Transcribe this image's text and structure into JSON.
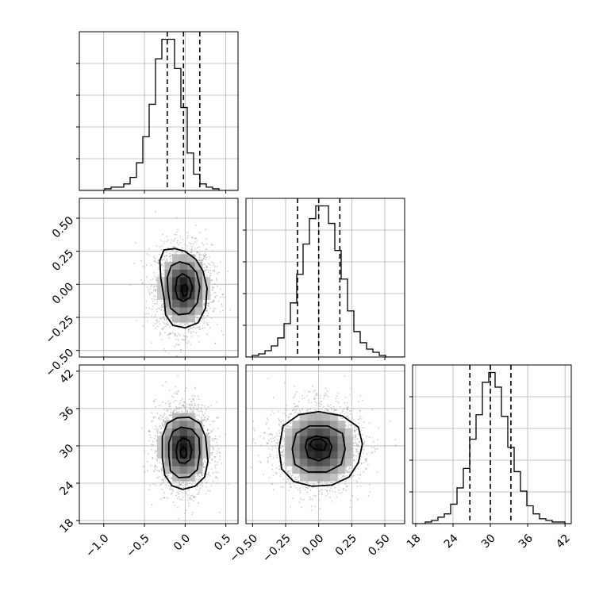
{
  "chart_data": {
    "type": "corner",
    "parameters": [
      "",
      "",
      ""
    ],
    "grid": true,
    "colors": {
      "line": "#000000",
      "grid": "#b0b0b0",
      "points": "#9a9a9a"
    },
    "ranges": [
      [
        -1.3,
        0.65
      ],
      [
        -0.55,
        0.65
      ],
      [
        17.5,
        43.0
      ]
    ],
    "ticks": [
      [
        -1.0,
        -0.5,
        0.0,
        0.5
      ],
      [
        -0.5,
        -0.25,
        0.0,
        0.25,
        0.5
      ],
      [
        18,
        24,
        30,
        36,
        42
      ]
    ],
    "tick_labels": [
      [
        "−1.0",
        "−0.5",
        "0.0",
        "0.5"
      ],
      [
        "−0.50",
        "−0.25",
        "0.00",
        "0.25",
        "0.50"
      ],
      [
        "18",
        "24",
        "30",
        "36",
        "42"
      ]
    ],
    "quantiles": [
      [
        -0.22,
        -0.02,
        0.18
      ],
      [
        -0.16,
        0.0,
        0.16
      ],
      [
        26.7,
        30.0,
        33.3
      ]
    ],
    "histograms": [
      {
        "param": 0,
        "edges_range": [
          -1.3,
          0.65
        ],
        "counts": [
          0,
          0,
          0,
          0,
          1,
          2,
          2,
          4,
          8,
          17,
          33,
          53,
          81,
          93,
          93,
          75,
          51,
          23,
          10,
          4,
          2,
          1,
          0,
          0,
          0
        ]
      },
      {
        "param": 1,
        "edges_range": [
          -0.55,
          0.65
        ],
        "counts": [
          0,
          1,
          2,
          4,
          7,
          12,
          21,
          34,
          52,
          71,
          87,
          95,
          95,
          84,
          67,
          49,
          29,
          16,
          9,
          5,
          3,
          1,
          0,
          0,
          0
        ]
      },
      {
        "param": 2,
        "edges_range": [
          17.5,
          43.0
        ],
        "counts": [
          0,
          0,
          1,
          2,
          4,
          6,
          12,
          22,
          34,
          52,
          67,
          87,
          93,
          84,
          66,
          47,
          32,
          20,
          11,
          6,
          3,
          2,
          1,
          1,
          0
        ]
      }
    ],
    "pairs": [
      {
        "x_param": 0,
        "y_param": 1,
        "center": [
          -0.02,
          -0.03
        ],
        "sigma": [
          0.165,
          0.155
        ],
        "contours": [
          [
            [
              -0.26,
              -0.1
            ],
            [
              -0.24,
              -0.23
            ],
            [
              -0.15,
              -0.31
            ],
            [
              0.0,
              -0.33
            ],
            [
              0.16,
              -0.29
            ],
            [
              0.25,
              -0.18
            ],
            [
              0.27,
              -0.03
            ],
            [
              0.22,
              0.1
            ],
            [
              0.13,
              0.19
            ],
            [
              0.0,
              0.25
            ],
            [
              -0.13,
              0.27
            ],
            [
              -0.26,
              0.26
            ],
            [
              -0.31,
              0.18
            ],
            [
              -0.3,
              0.05
            ]
          ],
          [
            [
              -0.21,
              -0.05
            ],
            [
              -0.18,
              -0.18
            ],
            [
              -0.08,
              -0.23
            ],
            [
              0.05,
              -0.22
            ],
            [
              0.15,
              -0.14
            ],
            [
              0.18,
              -0.02
            ],
            [
              0.14,
              0.09
            ],
            [
              0.05,
              0.15
            ],
            [
              -0.07,
              0.17
            ],
            [
              -0.17,
              0.14
            ],
            [
              -0.22,
              0.05
            ]
          ],
          [
            [
              -0.12,
              -0.04
            ],
            [
              -0.09,
              -0.11
            ],
            [
              -0.02,
              -0.13
            ],
            [
              0.06,
              -0.1
            ],
            [
              0.09,
              -0.02
            ],
            [
              0.05,
              0.05
            ],
            [
              -0.03,
              0.08
            ],
            [
              -0.1,
              0.05
            ]
          ],
          [
            [
              -0.04,
              -0.05
            ],
            [
              -0.02,
              -0.09
            ],
            [
              0.02,
              -0.08
            ],
            [
              0.03,
              -0.03
            ],
            [
              0.01,
              0.0
            ],
            [
              -0.03,
              -0.01
            ]
          ]
        ]
      },
      {
        "x_param": 0,
        "y_param": 2,
        "center": [
          -0.02,
          29.8
        ],
        "sigma": [
          0.165,
          3.3
        ],
        "contours": [
          [
            [
              -0.28,
              28.0
            ],
            [
              -0.25,
              25.3
            ],
            [
              -0.16,
              23.6
            ],
            [
              -0.03,
              23.0
            ],
            [
              0.12,
              23.5
            ],
            [
              0.24,
              25.0
            ],
            [
              0.28,
              27.5
            ],
            [
              0.25,
              31.5
            ],
            [
              0.18,
              33.6
            ],
            [
              0.05,
              34.6
            ],
            [
              -0.1,
              34.5
            ],
            [
              -0.22,
              33.6
            ],
            [
              -0.28,
              31.5
            ]
          ],
          [
            [
              -0.2,
              28.5
            ],
            [
              -0.18,
              26.0
            ],
            [
              -0.08,
              24.9
            ],
            [
              0.05,
              25.0
            ],
            [
              0.15,
              26.2
            ],
            [
              0.18,
              28.8
            ],
            [
              0.17,
              31.3
            ],
            [
              0.08,
              32.7
            ],
            [
              -0.05,
              33.0
            ],
            [
              -0.15,
              32.3
            ],
            [
              -0.2,
              30.5
            ]
          ],
          [
            [
              -0.1,
              28.0
            ],
            [
              -0.07,
              27.3
            ],
            [
              0.0,
              27.2
            ],
            [
              0.06,
              27.8
            ],
            [
              0.08,
              29.3
            ],
            [
              0.05,
              30.8
            ],
            [
              -0.02,
              31.3
            ],
            [
              -0.09,
              30.6
            ],
            [
              -0.11,
              29.2
            ]
          ],
          [
            [
              -0.06,
              29.2
            ],
            [
              -0.05,
              28.4
            ],
            [
              -0.01,
              28.0
            ],
            [
              0.02,
              28.6
            ],
            [
              0.01,
              29.5
            ],
            [
              -0.03,
              29.8
            ]
          ]
        ]
      },
      {
        "x_param": 1,
        "y_param": 2,
        "center": [
          0.0,
          29.8
        ],
        "sigma": [
          0.155,
          3.3
        ],
        "contours": [
          [
            [
              -0.3,
              29.5
            ],
            [
              -0.28,
              26.3
            ],
            [
              -0.19,
              24.3
            ],
            [
              -0.05,
              23.5
            ],
            [
              0.1,
              23.7
            ],
            [
              0.23,
              25.0
            ],
            [
              0.3,
              27.3
            ],
            [
              0.33,
              30.3
            ],
            [
              0.3,
              33.0
            ],
            [
              0.18,
              34.8
            ],
            [
              0.0,
              35.5
            ],
            [
              -0.15,
              35.0
            ],
            [
              -0.27,
              33.2
            ]
          ],
          [
            [
              -0.2,
              29.5
            ],
            [
              -0.18,
              27.0
            ],
            [
              -0.08,
              25.8
            ],
            [
              0.06,
              25.8
            ],
            [
              0.17,
              27.0
            ],
            [
              0.2,
              29.5
            ],
            [
              0.18,
              32.0
            ],
            [
              0.07,
              33.2
            ],
            [
              -0.07,
              33.2
            ],
            [
              -0.17,
              32.0
            ]
          ],
          [
            [
              -0.1,
              29.8
            ],
            [
              -0.08,
              28.2
            ],
            [
              0.0,
              27.6
            ],
            [
              0.08,
              28.3
            ],
            [
              0.1,
              29.9
            ],
            [
              0.07,
              31.2
            ],
            [
              -0.02,
              31.6
            ],
            [
              -0.09,
              31.0
            ]
          ],
          [
            [
              -0.07,
              30.2
            ],
            [
              -0.03,
              29.5
            ],
            [
              0.04,
              29.3
            ],
            [
              0.06,
              30.4
            ],
            [
              0.02,
              31.1
            ],
            [
              -0.04,
              31.0
            ]
          ]
        ]
      }
    ]
  }
}
